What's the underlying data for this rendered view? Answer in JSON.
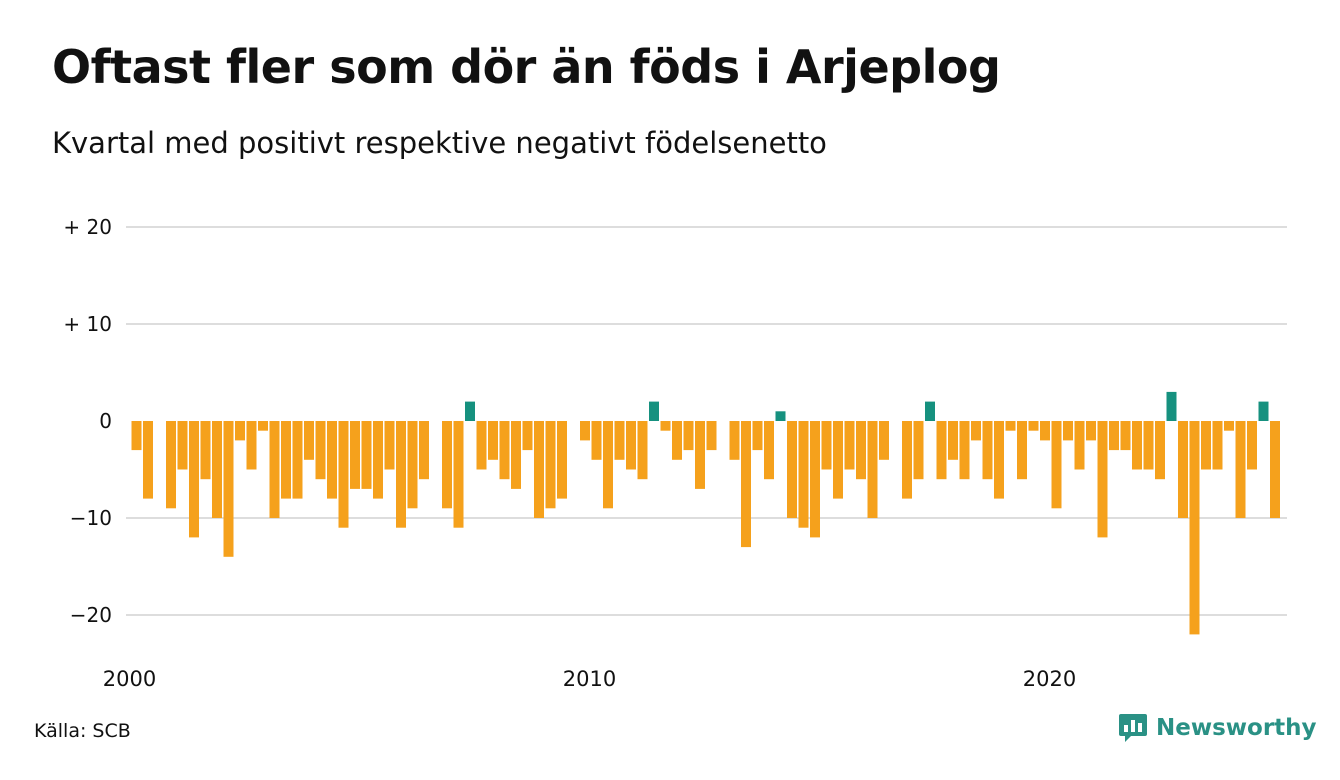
{
  "title": "Oftast fler som dör än föds i Arjeplog",
  "subtitle": "Kvartal med positivt respektive negativt födelsenetto",
  "source": "Källa: SCB",
  "brand": {
    "name": "Newsworthy",
    "icon": "newsworthy-logo-icon"
  },
  "colors": {
    "positive": "#16917f",
    "negative": "#f5a11c",
    "grid": "#dddddd"
  },
  "chart_data": {
    "type": "bar",
    "x_start": "2000 Q1",
    "x_ticks": [
      {
        "label": "2000",
        "year": 2000
      },
      {
        "label": "2010",
        "year": 2010
      },
      {
        "label": "2020",
        "year": 2020
      }
    ],
    "y_ticks": [
      {
        "label": "+ 20",
        "value": 20
      },
      {
        "label": "+ 10",
        "value": 10
      },
      {
        "label": "0",
        "value": 0
      },
      {
        "label": "−10",
        "value": -10
      },
      {
        "label": "−20",
        "value": -20
      }
    ],
    "ylim": [
      -24,
      20
    ],
    "grid": true,
    "values": [
      -3,
      -8,
      0,
      -9,
      -5,
      -12,
      -6,
      -10,
      -14,
      -2,
      -5,
      -1,
      -10,
      -8,
      -8,
      -4,
      -6,
      -8,
      -11,
      -7,
      -7,
      -8,
      -5,
      -11,
      -9,
      -6,
      0,
      -9,
      -11,
      2,
      -5,
      -4,
      -6,
      -7,
      -3,
      -10,
      -9,
      -8,
      0,
      -2,
      -4,
      -9,
      -4,
      -5,
      -6,
      2,
      -1,
      -4,
      -3,
      -7,
      -3,
      0,
      -4,
      -13,
      -3,
      -6,
      1,
      -10,
      -11,
      -12,
      -5,
      -8,
      -5,
      -6,
      -10,
      -4,
      0,
      -8,
      -6,
      2,
      -6,
      -4,
      -6,
      -2,
      -6,
      -8,
      -1,
      -6,
      -1,
      -2,
      -9,
      -2,
      -5,
      -2,
      -12,
      -3,
      -3,
      -5,
      -5,
      -6,
      3,
      -10,
      -22,
      -5,
      -5,
      -1,
      -10,
      -5,
      2,
      -10
    ]
  }
}
